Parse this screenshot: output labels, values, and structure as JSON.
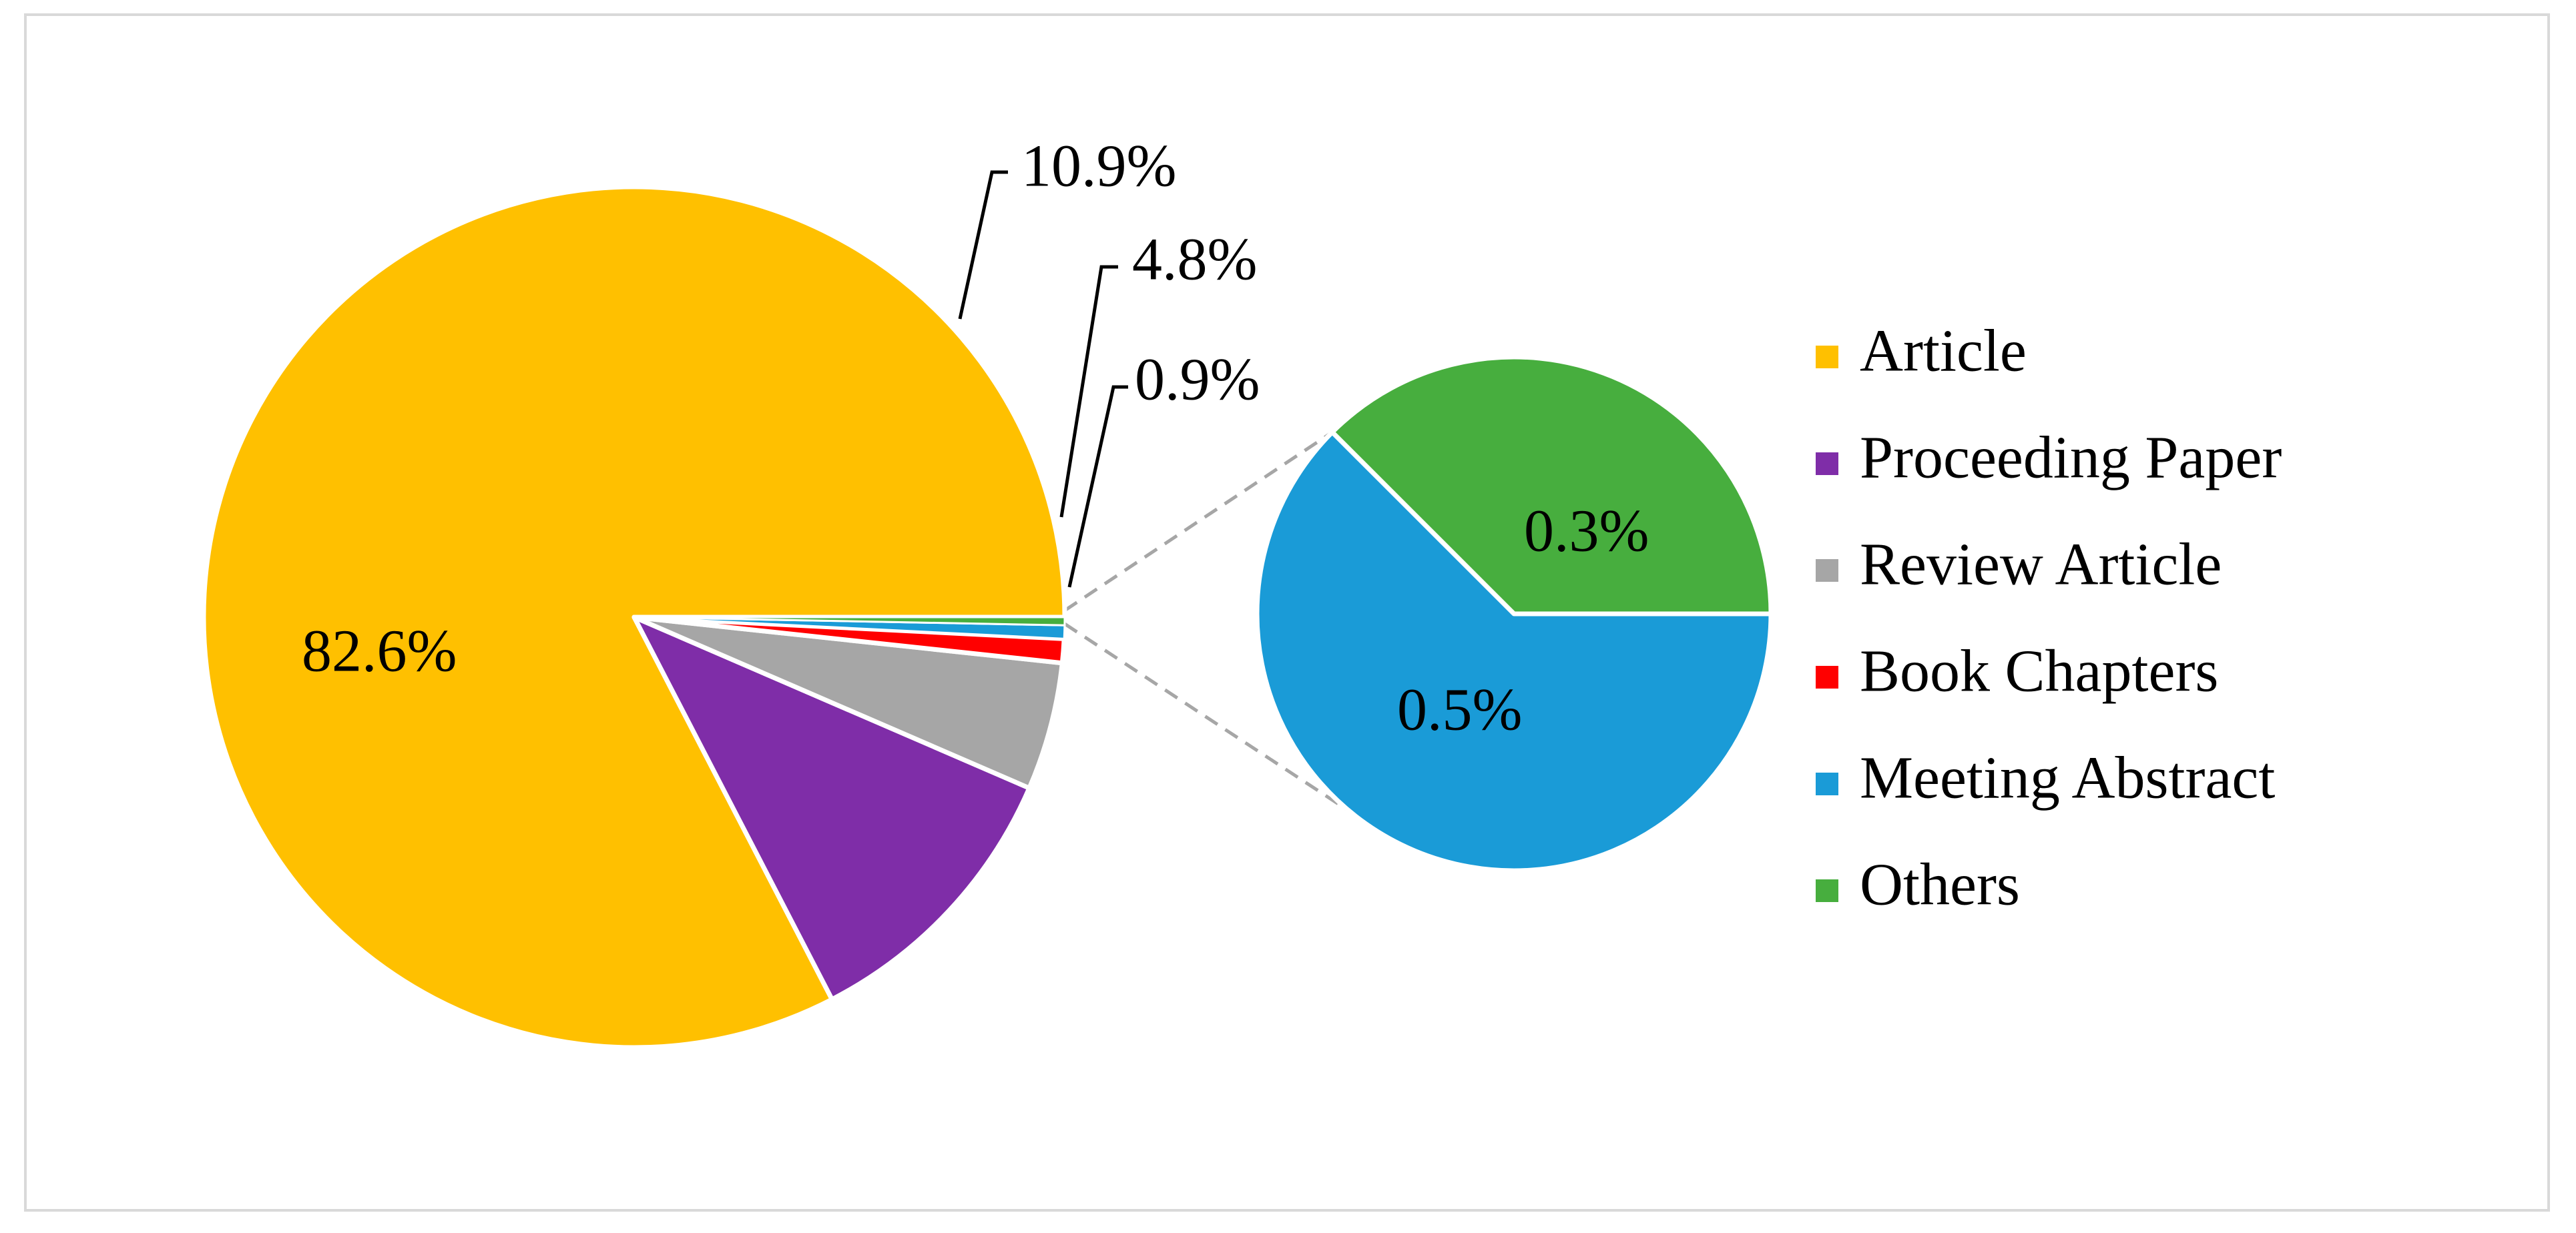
{
  "chart_data": {
    "type": "pie",
    "subtype": "pie-of-pie",
    "title": "",
    "slices": [
      {
        "name": "Article",
        "value": 82.6,
        "label": "82.6%",
        "color": "#FFC000"
      },
      {
        "name": "Proceeding Paper",
        "value": 10.9,
        "label": "10.9%",
        "color": "#7F2DA8"
      },
      {
        "name": "Review Article",
        "value": 4.8,
        "label": "4.8%",
        "color": "#A6A6A6"
      },
      {
        "name": "Book Chapters",
        "value": 0.9,
        "label": "0.9%",
        "color": "#FF0000"
      },
      {
        "name": "Meeting Abstract",
        "value": 0.5,
        "label": "0.5%",
        "color": "#1A9BD7"
      },
      {
        "name": "Others",
        "value": 0.3,
        "label": "0.3%",
        "color": "#47AE3E"
      }
    ],
    "secondary_pie": [
      "Meeting Abstract",
      "Others"
    ],
    "legend_position": "right",
    "legend": [
      "Article",
      "Proceeding Paper",
      "Review Article",
      "Book Chapters",
      "Meeting Abstract",
      "Others"
    ]
  }
}
